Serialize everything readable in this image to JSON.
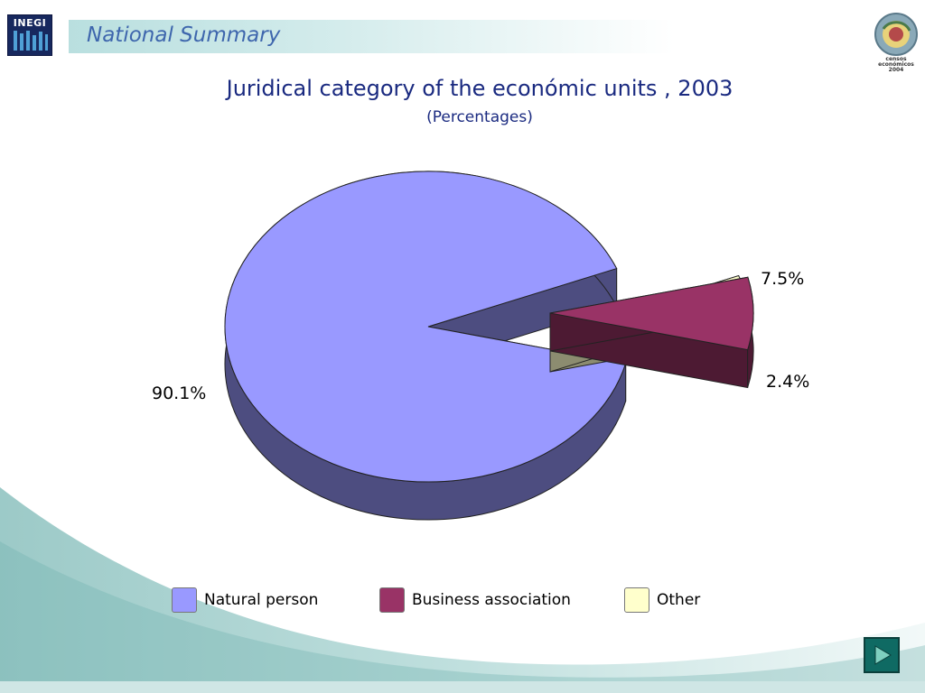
{
  "header": {
    "section_title": "National Summary",
    "logo_left_text": "INEGI",
    "logo_right_text": [
      "censos",
      "económicos",
      "2004"
    ]
  },
  "chart_data": {
    "type": "pie",
    "title": "Juridical category  of the económic units , 2003",
    "subtitle": "(Percentages)",
    "slices": [
      {
        "name": "Natural person",
        "value": 90.1,
        "label": "90.1%",
        "color": "#9999ff",
        "exploded": false
      },
      {
        "name": "Business association",
        "value": 7.5,
        "label": "7.5%",
        "color": "#993366",
        "exploded": true
      },
      {
        "name": "Other",
        "value": 2.4,
        "label": "2.4%",
        "color": "#ffffcc",
        "exploded": true
      }
    ],
    "legend_position": "bottom",
    "three_d": true
  },
  "colors": {
    "title_text": "#1a2a80",
    "header_text": "#3e66ad",
    "accent_teal": "#0f6a63"
  },
  "icons": {
    "next": "play-triangle-icon"
  }
}
